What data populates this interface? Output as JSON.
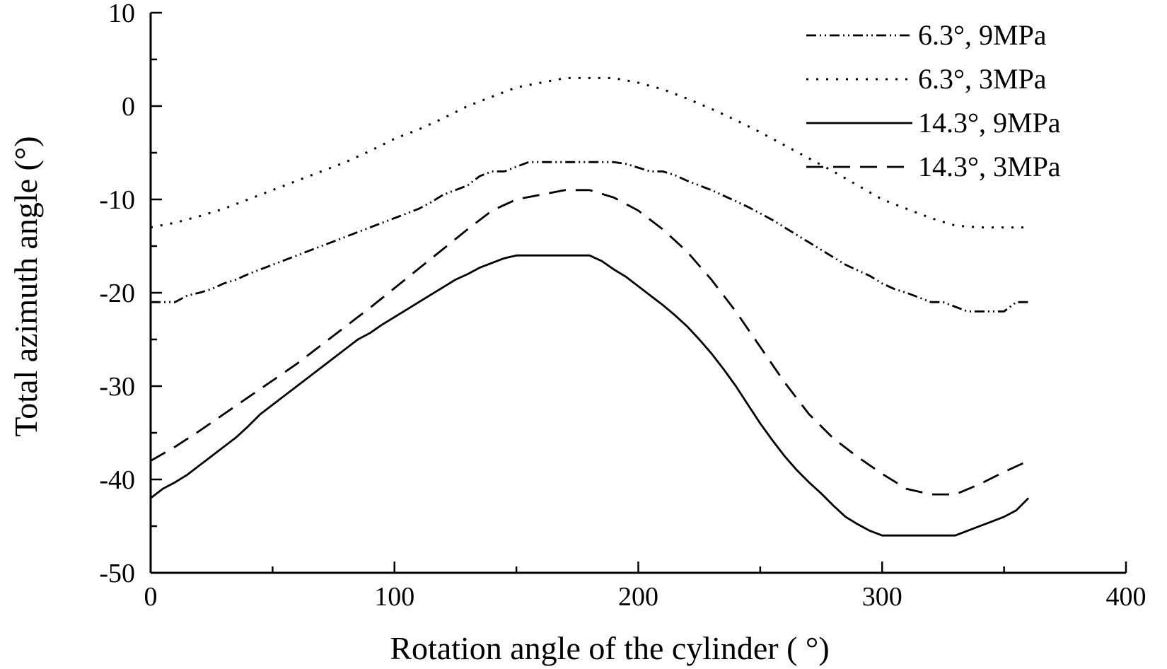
{
  "chart_data": {
    "type": "line",
    "title": "",
    "xlabel": "Rotation angle of the cylinder ( °)",
    "ylabel": "Total azimuth angle (°)",
    "xlim": [
      0,
      400
    ],
    "ylim": [
      -50,
      10
    ],
    "xticks": [
      0,
      100,
      200,
      300,
      400
    ],
    "yticks": [
      10,
      0,
      -10,
      -20,
      -30,
      -40,
      -50
    ],
    "grid": false,
    "legend_position": "top-right",
    "series": [
      {
        "name": "6.3°, 9MPa",
        "style": "dash-dot-dot",
        "x": [
          0,
          5,
          10,
          15,
          20,
          25,
          30,
          35,
          40,
          45,
          50,
          55,
          60,
          65,
          70,
          75,
          80,
          85,
          90,
          95,
          100,
          105,
          110,
          115,
          120,
          125,
          130,
          135,
          140,
          145,
          150,
          155,
          160,
          165,
          170,
          175,
          180,
          185,
          190,
          195,
          200,
          205,
          210,
          215,
          220,
          225,
          230,
          235,
          240,
          245,
          250,
          255,
          260,
          265,
          270,
          275,
          280,
          285,
          290,
          295,
          300,
          305,
          310,
          315,
          320,
          325,
          330,
          335,
          340,
          345,
          350,
          355,
          360
        ],
        "y": [
          -21,
          -21,
          -21,
          -20.3,
          -20,
          -19.6,
          -19,
          -18.6,
          -18,
          -17.5,
          -17,
          -16.5,
          -16,
          -15.5,
          -15,
          -14.5,
          -14,
          -13.5,
          -13,
          -12.5,
          -12,
          -11.5,
          -11,
          -10.3,
          -9.5,
          -9,
          -8.5,
          -7.5,
          -7,
          -7,
          -6.5,
          -6,
          -6,
          -6,
          -6,
          -6,
          -6,
          -6,
          -6,
          -6.2,
          -6.6,
          -7,
          -7,
          -7.4,
          -8,
          -8.5,
          -9,
          -9.6,
          -10.2,
          -10.8,
          -11.5,
          -12.2,
          -13,
          -13.8,
          -14.6,
          -15.4,
          -16.2,
          -17,
          -17.6,
          -18.2,
          -19,
          -19.6,
          -20,
          -20.5,
          -21,
          -21,
          -21.5,
          -22,
          -22,
          -22,
          -22,
          -21,
          -21
        ]
      },
      {
        "name": "6.3°, 3MPa",
        "style": "dotted",
        "x": [
          0,
          10,
          20,
          30,
          40,
          50,
          60,
          70,
          80,
          90,
          100,
          110,
          120,
          130,
          140,
          150,
          160,
          170,
          180,
          190,
          200,
          210,
          220,
          230,
          240,
          250,
          260,
          270,
          280,
          290,
          300,
          310,
          320,
          330,
          340,
          350,
          360
        ],
        "y": [
          -13,
          -12.5,
          -11.8,
          -11,
          -10,
          -9,
          -8,
          -7,
          -6,
          -4.8,
          -3.5,
          -2.5,
          -1.3,
          0,
          1,
          2,
          2.5,
          3,
          3,
          3,
          2.5,
          1.8,
          0.8,
          -0.3,
          -1.5,
          -2.8,
          -4.2,
          -5.6,
          -7,
          -8.5,
          -10,
          -11,
          -12,
          -12.8,
          -13,
          -13,
          -13
        ]
      },
      {
        "name": "14.3°, 9MPa",
        "style": "solid",
        "x": [
          0,
          5,
          10,
          15,
          20,
          25,
          30,
          35,
          40,
          45,
          50,
          55,
          60,
          65,
          70,
          75,
          80,
          85,
          90,
          95,
          100,
          105,
          110,
          115,
          120,
          125,
          130,
          135,
          140,
          145,
          150,
          160,
          170,
          180,
          185,
          190,
          195,
          200,
          205,
          210,
          215,
          220,
          225,
          230,
          235,
          240,
          245,
          250,
          255,
          260,
          265,
          270,
          275,
          280,
          285,
          290,
          295,
          300,
          305,
          310,
          315,
          320,
          325,
          330,
          335,
          340,
          345,
          350,
          355,
          360
        ],
        "y": [
          -42,
          -41,
          -40.3,
          -39.5,
          -38.5,
          -37.5,
          -36.5,
          -35.5,
          -34.3,
          -33,
          -32,
          -31,
          -30,
          -29,
          -28,
          -27,
          -26,
          -25,
          -24.3,
          -23.4,
          -22.6,
          -21.8,
          -21,
          -20.2,
          -19.4,
          -18.6,
          -18,
          -17.3,
          -16.8,
          -16.3,
          -16,
          -16,
          -16,
          -16,
          -16.6,
          -17.5,
          -18.3,
          -19.3,
          -20.3,
          -21.3,
          -22.4,
          -23.6,
          -25,
          -26.5,
          -28.2,
          -30,
          -32,
          -34,
          -35.8,
          -37.5,
          -39,
          -40.3,
          -41.5,
          -42.8,
          -44,
          -44.8,
          -45.5,
          -46,
          -46,
          -46,
          -46,
          -46,
          -46,
          -46,
          -45.5,
          -45,
          -44.5,
          -44,
          -43.3,
          -42
        ]
      },
      {
        "name": "14.3°, 3MPa",
        "style": "dashed",
        "x": [
          0,
          10,
          20,
          30,
          40,
          50,
          60,
          70,
          80,
          90,
          100,
          110,
          120,
          130,
          140,
          150,
          160,
          170,
          180,
          190,
          200,
          210,
          220,
          230,
          240,
          250,
          260,
          270,
          280,
          290,
          300,
          310,
          320,
          330,
          340,
          350,
          360
        ],
        "y": [
          -38,
          -36.5,
          -34.8,
          -33,
          -31.2,
          -29.4,
          -27.6,
          -25.6,
          -23.6,
          -21.6,
          -19.5,
          -17.4,
          -15.3,
          -13.2,
          -11.2,
          -10,
          -9.5,
          -9,
          -9,
          -9.8,
          -11.2,
          -13.2,
          -15.6,
          -18.6,
          -22,
          -25.8,
          -29.6,
          -33,
          -35.6,
          -37.6,
          -39.4,
          -41,
          -41.6,
          -41.6,
          -40.5,
          -39.2,
          -38
        ]
      }
    ]
  }
}
